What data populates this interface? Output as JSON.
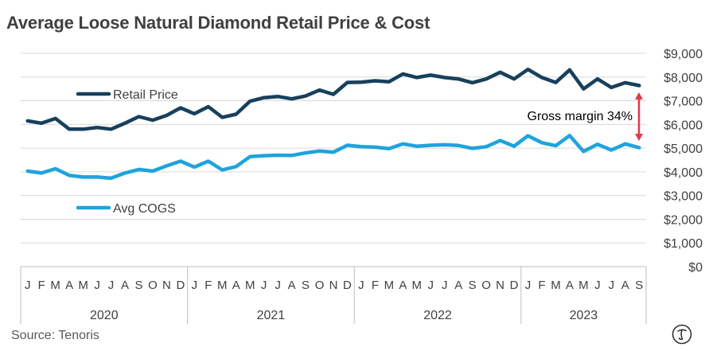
{
  "title": "Average Loose Natural Diamond Retail Price & Cost",
  "source": "Source: Tenoris",
  "logo_icon": "tenoris-logo-icon",
  "chart_data": {
    "type": "line",
    "title": "Average Loose Natural Diamond Retail Price & Cost",
    "xlabel": "",
    "ylabel": "",
    "ylim": [
      0,
      9000
    ],
    "yticks": [
      0,
      1000,
      2000,
      3000,
      4000,
      5000,
      6000,
      7000,
      8000,
      9000
    ],
    "ytick_labels": [
      "$0",
      "$1,000",
      "$2,000",
      "$3,000",
      "$4,000",
      "$5,000",
      "$6,000",
      "$7,000",
      "$8,000",
      "$9,000"
    ],
    "y_axis_side": "right",
    "grid": true,
    "month_labels": [
      "J",
      "F",
      "M",
      "A",
      "M",
      "J",
      "J",
      "A",
      "S",
      "O",
      "N",
      "D",
      "J",
      "F",
      "M",
      "A",
      "M",
      "J",
      "J",
      "A",
      "S",
      "O",
      "N",
      "D",
      "J",
      "F",
      "M",
      "A",
      "M",
      "J",
      "J",
      "A",
      "S",
      "O",
      "N",
      "D",
      "J",
      "F",
      "M",
      "A",
      "M",
      "J",
      "J",
      "A",
      "S"
    ],
    "years": [
      {
        "label": "2020",
        "months": 12
      },
      {
        "label": "2021",
        "months": 12
      },
      {
        "label": "2022",
        "months": 12
      },
      {
        "label": "2023",
        "months": 9
      }
    ],
    "series": [
      {
        "name": "Retail Price",
        "color": "#17405c",
        "values": [
          6150,
          6050,
          6250,
          5800,
          5800,
          5870,
          5800,
          6050,
          6330,
          6180,
          6380,
          6700,
          6450,
          6750,
          6300,
          6430,
          6980,
          7130,
          7180,
          7080,
          7200,
          7450,
          7270,
          7770,
          7780,
          7840,
          7800,
          8130,
          7980,
          8080,
          7980,
          7920,
          7760,
          7920,
          8200,
          7920,
          8320,
          7980,
          7770,
          8300,
          7500,
          7920,
          7560,
          7760,
          7640
        ]
      },
      {
        "name": "Avg COGS",
        "color": "#1fa3dc",
        "values": [
          4030,
          3950,
          4130,
          3850,
          3780,
          3780,
          3730,
          3950,
          4100,
          4030,
          4250,
          4450,
          4200,
          4450,
          4080,
          4220,
          4640,
          4680,
          4700,
          4690,
          4800,
          4880,
          4830,
          5120,
          5060,
          5040,
          4980,
          5180,
          5080,
          5120,
          5140,
          5110,
          4990,
          5060,
          5320,
          5080,
          5520,
          5230,
          5100,
          5530,
          4860,
          5160,
          4920,
          5180,
          5020
        ]
      }
    ],
    "legend_placement": "inline-left",
    "annotation": {
      "text": "Gross margin 34%",
      "color": "#e0394b"
    }
  }
}
